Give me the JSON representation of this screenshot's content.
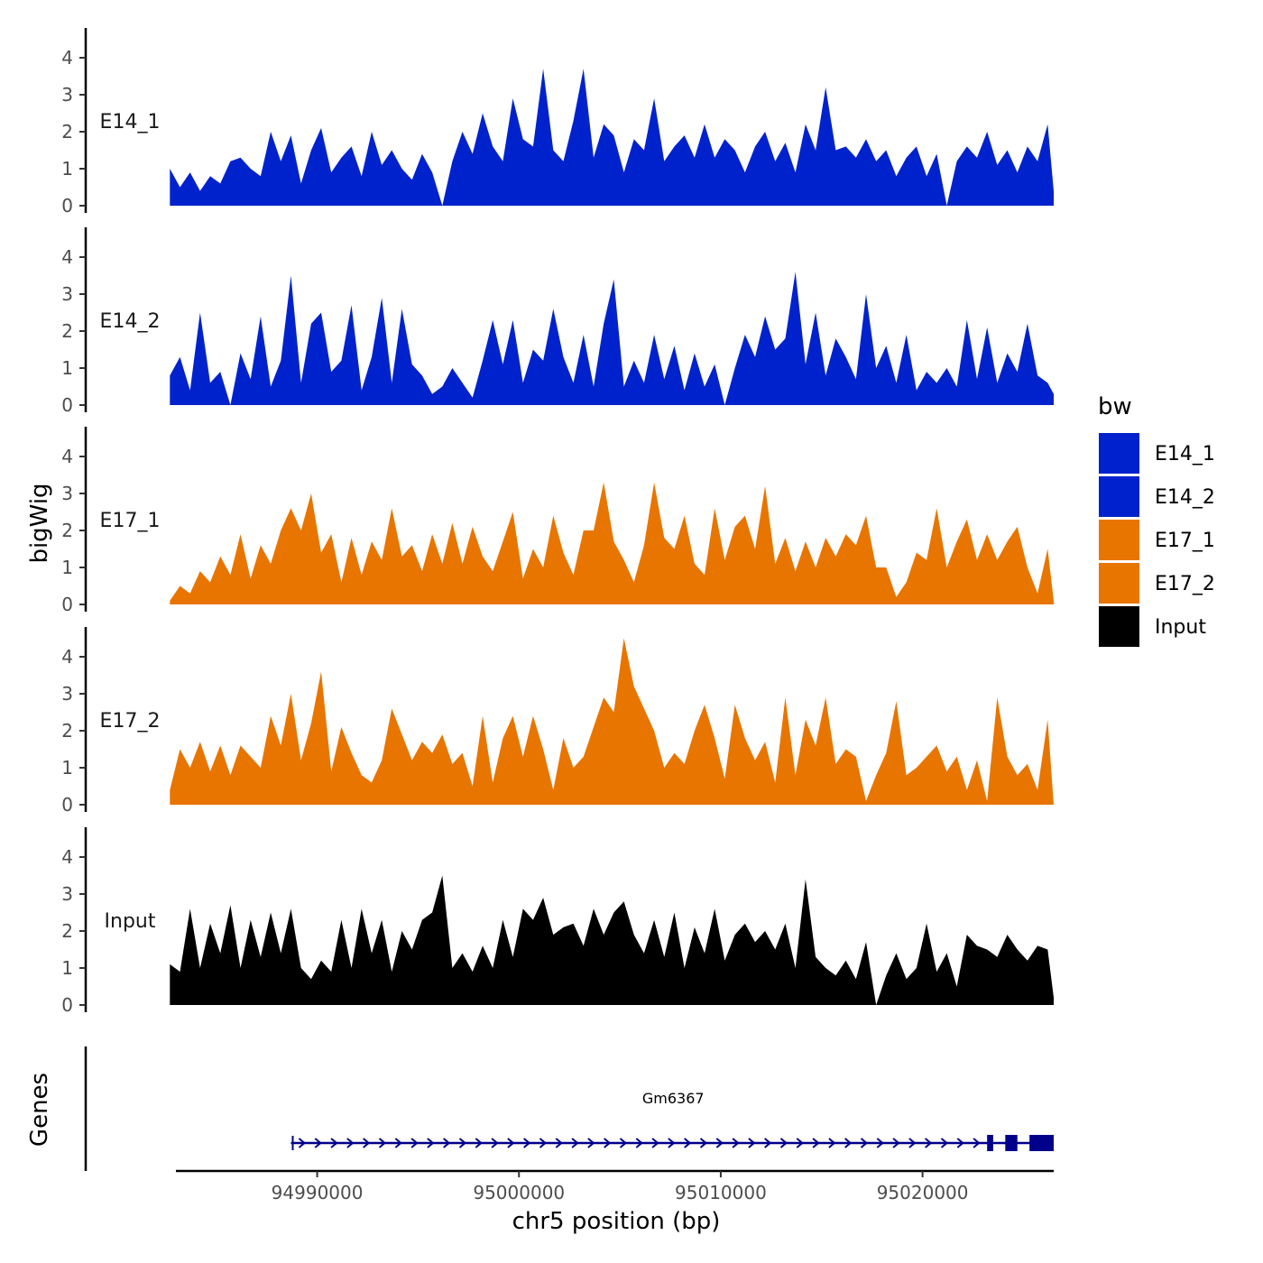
{
  "chart_data": {
    "type": "area",
    "title": "",
    "ylabel": "bigWig",
    "genes_label": "Genes",
    "xlabel": "chr5 position (bp)",
    "x_range": [
      94983000,
      95026500
    ],
    "x_ticks": [
      94990000,
      95000000,
      95010000,
      95020000
    ],
    "x_tick_labels": [
      "94990000",
      "95000000",
      "95010000",
      "95020000"
    ],
    "ylim": [
      0,
      4.8
    ],
    "y_ticks": [
      0,
      1,
      2,
      3,
      4
    ],
    "y_tick_labels": [
      "0",
      "1",
      "2",
      "3",
      "4"
    ],
    "legend": {
      "title": "bw",
      "position": "right",
      "entries": [
        {
          "name": "E14_1",
          "color": "#0022CC"
        },
        {
          "name": "E14_2",
          "color": "#0022CC"
        },
        {
          "name": "E17_1",
          "color": "#E87500"
        },
        {
          "name": "E17_2",
          "color": "#E87500"
        },
        {
          "name": "Input",
          "color": "#000000"
        }
      ]
    },
    "series": [
      {
        "name": "E14_1",
        "color": "#0022CC",
        "x": [
          94982700,
          94983200,
          94983700,
          94984200,
          94984700,
          94985200,
          94985700,
          94986200,
          94986700,
          94987200,
          94987700,
          94988200,
          94988700,
          94989200,
          94989700,
          94990200,
          94990700,
          94991200,
          94991700,
          94992200,
          94992700,
          94993200,
          94993700,
          94994200,
          94994700,
          94995200,
          94995700,
          94996200,
          94996700,
          94997200,
          94997700,
          94998200,
          94998700,
          94999200,
          94999700,
          95000200,
          95000700,
          95001200,
          95001700,
          95002200,
          95002700,
          95003200,
          95003700,
          95004200,
          95004700,
          95005200,
          95005700,
          95006200,
          95006700,
          95007200,
          95007700,
          95008200,
          95008700,
          95009200,
          95009700,
          95010200,
          95010700,
          95011200,
          95011700,
          95012200,
          95012700,
          95013200,
          95013700,
          95014200,
          95014700,
          95015200,
          95015700,
          95016200,
          95016700,
          95017200,
          95017700,
          95018200,
          95018700,
          95019200,
          95019700,
          95020200,
          95020700,
          95021200,
          95021700,
          95022200,
          95022700,
          95023200,
          95023700,
          95024200,
          95024700,
          95025200,
          95025700,
          95026200,
          95026500
        ],
        "values": [
          1.0,
          0.5,
          0.9,
          0.4,
          0.8,
          0.6,
          1.2,
          1.3,
          1.0,
          0.8,
          2.0,
          1.2,
          1.9,
          0.6,
          1.5,
          2.1,
          0.9,
          1.3,
          1.6,
          0.8,
          2.0,
          1.1,
          1.5,
          1.0,
          0.7,
          1.4,
          0.9,
          0.0,
          1.2,
          2.0,
          1.4,
          2.5,
          1.6,
          1.2,
          2.9,
          1.8,
          1.6,
          3.7,
          1.5,
          1.2,
          2.3,
          3.7,
          1.3,
          2.2,
          1.9,
          0.9,
          1.8,
          1.5,
          2.9,
          1.2,
          1.6,
          1.9,
          1.3,
          2.2,
          1.3,
          1.8,
          1.5,
          0.9,
          1.6,
          2.0,
          1.2,
          1.7,
          0.9,
          2.2,
          1.5,
          3.2,
          1.5,
          1.6,
          1.3,
          1.8,
          1.2,
          1.5,
          0.8,
          1.3,
          1.6,
          0.8,
          1.4,
          0.0,
          1.2,
          1.6,
          1.3,
          2.0,
          1.1,
          1.5,
          0.9,
          1.6,
          1.2,
          2.2,
          0.4
        ]
      },
      {
        "name": "E14_2",
        "color": "#0022CC",
        "x": [
          94982700,
          94983200,
          94983700,
          94984200,
          94984700,
          94985200,
          94985700,
          94986200,
          94986700,
          94987200,
          94987700,
          94988200,
          94988700,
          94989200,
          94989700,
          94990200,
          94990700,
          94991200,
          94991700,
          94992200,
          94992700,
          94993200,
          94993700,
          94994200,
          94994700,
          94995200,
          94995700,
          94996200,
          94996700,
          94997200,
          94997700,
          94998200,
          94998700,
          94999200,
          94999700,
          95000200,
          95000700,
          95001200,
          95001700,
          95002200,
          95002700,
          95003200,
          95003700,
          95004200,
          95004700,
          95005200,
          95005700,
          95006200,
          95006700,
          95007200,
          95007700,
          95008200,
          95008700,
          95009200,
          95009700,
          95010200,
          95010700,
          95011200,
          95011700,
          95012200,
          95012700,
          95013200,
          95013700,
          95014200,
          95014700,
          95015200,
          95015700,
          95016200,
          95016700,
          95017200,
          95017700,
          95018200,
          95018700,
          95019200,
          95019700,
          95020200,
          95020700,
          95021200,
          95021700,
          95022200,
          95022700,
          95023200,
          95023700,
          95024200,
          95024700,
          95025200,
          95025700,
          95026200,
          95026500
        ],
        "values": [
          0.8,
          1.3,
          0.4,
          2.5,
          0.6,
          0.9,
          0.0,
          1.4,
          0.7,
          2.4,
          0.5,
          1.2,
          3.5,
          0.6,
          2.2,
          2.5,
          0.9,
          1.2,
          2.7,
          0.4,
          1.3,
          2.9,
          0.6,
          2.6,
          1.1,
          0.8,
          0.3,
          0.5,
          1.0,
          0.6,
          0.2,
          1.2,
          2.3,
          1.1,
          2.3,
          0.6,
          1.5,
          1.2,
          2.6,
          1.3,
          0.6,
          1.9,
          0.5,
          2.2,
          3.4,
          0.5,
          1.2,
          0.6,
          1.9,
          0.7,
          1.6,
          0.4,
          1.4,
          0.5,
          1.1,
          0.0,
          1.0,
          1.9,
          1.3,
          2.4,
          1.5,
          1.8,
          3.6,
          1.1,
          2.5,
          0.8,
          1.8,
          1.3,
          0.7,
          3.0,
          1.0,
          1.6,
          0.6,
          1.9,
          0.4,
          0.9,
          0.6,
          1.0,
          0.5,
          2.3,
          0.7,
          2.1,
          0.6,
          1.4,
          0.9,
          2.2,
          0.8,
          0.6,
          0.3
        ]
      },
      {
        "name": "E17_1",
        "color": "#E87500",
        "x": [
          94982700,
          94983200,
          94983700,
          94984200,
          94984700,
          94985200,
          94985700,
          94986200,
          94986700,
          94987200,
          94987700,
          94988200,
          94988700,
          94989200,
          94989700,
          94990200,
          94990700,
          94991200,
          94991700,
          94992200,
          94992700,
          94993200,
          94993700,
          94994200,
          94994700,
          94995200,
          94995700,
          94996200,
          94996700,
          94997200,
          94997700,
          94998200,
          94998700,
          94999200,
          94999700,
          95000200,
          95000700,
          95001200,
          95001700,
          95002200,
          95002700,
          95003200,
          95003700,
          95004200,
          95004700,
          95005200,
          95005700,
          95006200,
          95006700,
          95007200,
          95007700,
          95008200,
          95008700,
          95009200,
          95009700,
          95010200,
          95010700,
          95011200,
          95011700,
          95012200,
          95012700,
          95013200,
          95013700,
          95014200,
          95014700,
          95015200,
          95015700,
          95016200,
          95016700,
          95017200,
          95017700,
          95018200,
          95018700,
          95019200,
          95019700,
          95020200,
          95020700,
          95021200,
          95021700,
          95022200,
          95022700,
          95023200,
          95023700,
          95024200,
          95024700,
          95025200,
          95025700,
          95026200,
          95026500
        ],
        "values": [
          0.1,
          0.5,
          0.3,
          0.9,
          0.6,
          1.3,
          0.8,
          1.9,
          0.7,
          1.6,
          1.1,
          2.0,
          2.6,
          2.0,
          3.0,
          1.4,
          1.9,
          0.6,
          1.8,
          0.8,
          1.7,
          1.2,
          2.6,
          1.3,
          1.6,
          0.9,
          1.9,
          1.1,
          2.2,
          1.1,
          2.1,
          1.3,
          0.9,
          1.7,
          2.5,
          0.7,
          1.5,
          1.0,
          2.4,
          1.4,
          0.8,
          2.0,
          2.0,
          3.3,
          1.7,
          1.2,
          0.6,
          1.6,
          3.3,
          1.8,
          1.5,
          2.4,
          1.1,
          0.8,
          2.6,
          1.2,
          2.1,
          2.4,
          1.5,
          3.2,
          1.1,
          1.8,
          0.9,
          1.7,
          1.0,
          1.8,
          1.3,
          1.9,
          1.6,
          2.4,
          1.0,
          1.0,
          0.2,
          0.6,
          1.4,
          1.2,
          2.6,
          1.0,
          1.7,
          2.3,
          1.2,
          1.9,
          1.2,
          1.7,
          2.1,
          1.0,
          0.3,
          1.5,
          0.1
        ]
      },
      {
        "name": "E17_2",
        "color": "#E87500",
        "x": [
          94982700,
          94983200,
          94983700,
          94984200,
          94984700,
          94985200,
          94985700,
          94986200,
          94986700,
          94987200,
          94987700,
          94988200,
          94988700,
          94989200,
          94989700,
          94990200,
          94990700,
          94991200,
          94991700,
          94992200,
          94992700,
          94993200,
          94993700,
          94994200,
          94994700,
          94995200,
          94995700,
          94996200,
          94996700,
          94997200,
          94997700,
          94998200,
          94998700,
          94999200,
          94999700,
          95000200,
          95000700,
          95001200,
          95001700,
          95002200,
          95002700,
          95003200,
          95003700,
          95004200,
          95004700,
          95005200,
          95005700,
          95006200,
          95006700,
          95007200,
          95007700,
          95008200,
          95008700,
          95009200,
          95009700,
          95010200,
          95010700,
          95011200,
          95011700,
          95012200,
          95012700,
          95013200,
          95013700,
          95014200,
          95014700,
          95015200,
          95015700,
          95016200,
          95016700,
          95017200,
          95017700,
          95018200,
          95018700,
          95019200,
          95019700,
          95020200,
          95020700,
          95021200,
          95021700,
          95022200,
          95022700,
          95023200,
          95023700,
          95024200,
          95024700,
          95025200,
          95025700,
          95026200,
          95026500
        ],
        "values": [
          0.4,
          1.5,
          1.0,
          1.7,
          0.9,
          1.6,
          0.8,
          1.6,
          1.3,
          1.0,
          2.4,
          1.6,
          3.0,
          1.2,
          2.2,
          3.6,
          0.9,
          2.1,
          1.4,
          0.8,
          0.6,
          1.2,
          2.6,
          1.9,
          1.2,
          1.7,
          1.4,
          1.9,
          1.1,
          1.4,
          0.5,
          2.4,
          0.6,
          1.8,
          2.4,
          1.3,
          2.4,
          1.5,
          0.4,
          1.8,
          1.0,
          1.3,
          2.1,
          2.9,
          2.5,
          4.5,
          3.2,
          2.6,
          2.0,
          1.0,
          1.4,
          1.1,
          2.0,
          2.7,
          1.8,
          0.7,
          2.7,
          1.8,
          1.2,
          1.7,
          0.6,
          2.9,
          0.8,
          2.3,
          1.6,
          2.9,
          1.1,
          1.5,
          1.3,
          0.1,
          0.8,
          1.4,
          2.8,
          0.8,
          1.0,
          1.3,
          1.6,
          0.9,
          1.3,
          0.4,
          1.2,
          0.1,
          2.9,
          1.3,
          0.8,
          1.1,
          0.4,
          2.3,
          0.0
        ]
      },
      {
        "name": "Input",
        "color": "#000000",
        "x": [
          94982700,
          94983200,
          94983700,
          94984200,
          94984700,
          94985200,
          94985700,
          94986200,
          94986700,
          94987200,
          94987700,
          94988200,
          94988700,
          94989200,
          94989700,
          94990200,
          94990700,
          94991200,
          94991700,
          94992200,
          94992700,
          94993200,
          94993700,
          94994200,
          94994700,
          94995200,
          94995700,
          94996200,
          94996700,
          94997200,
          94997700,
          94998200,
          94998700,
          94999200,
          94999700,
          95000200,
          95000700,
          95001200,
          95001700,
          95002200,
          95002700,
          95003200,
          95003700,
          95004200,
          95004700,
          95005200,
          95005700,
          95006200,
          95006700,
          95007200,
          95007700,
          95008200,
          95008700,
          95009200,
          95009700,
          95010200,
          95010700,
          95011200,
          95011700,
          95012200,
          95012700,
          95013200,
          95013700,
          95014200,
          95014700,
          95015200,
          95015700,
          95016200,
          95016700,
          95017200,
          95017700,
          95018200,
          95018700,
          95019200,
          95019700,
          95020200,
          95020700,
          95021200,
          95021700,
          95022200,
          95022700,
          95023200,
          95023700,
          95024200,
          95024700,
          95025200,
          95025700,
          95026200,
          95026500
        ],
        "values": [
          1.1,
          0.9,
          2.6,
          1.0,
          2.2,
          1.4,
          2.7,
          1.0,
          2.3,
          1.3,
          2.5,
          1.4,
          2.6,
          1.0,
          0.7,
          1.2,
          0.9,
          2.3,
          1.0,
          2.6,
          1.4,
          2.3,
          0.9,
          2.0,
          1.5,
          2.3,
          2.5,
          3.5,
          1.0,
          1.4,
          0.9,
          1.6,
          1.0,
          2.3,
          1.3,
          2.6,
          2.3,
          2.9,
          1.9,
          2.1,
          2.2,
          1.6,
          2.6,
          1.9,
          2.5,
          2.8,
          1.9,
          1.4,
          2.3,
          1.3,
          2.5,
          1.0,
          2.1,
          1.4,
          2.6,
          1.2,
          1.9,
          2.2,
          1.7,
          2.0,
          1.5,
          2.2,
          1.0,
          3.4,
          1.3,
          1.0,
          0.8,
          1.2,
          0.7,
          1.7,
          0.0,
          0.8,
          1.4,
          0.7,
          1.0,
          2.2,
          0.9,
          1.4,
          0.5,
          1.9,
          1.6,
          1.5,
          1.3,
          1.9,
          1.5,
          1.2,
          1.6,
          1.5,
          0.2
        ]
      }
    ],
    "genes": [
      {
        "name": "Gm6367",
        "strand": "+",
        "start": 94988700,
        "end": 95026500,
        "exons": [
          [
            95023200,
            95023500
          ],
          [
            95024100,
            95024700
          ],
          [
            95025300,
            95026500
          ]
        ]
      }
    ]
  }
}
